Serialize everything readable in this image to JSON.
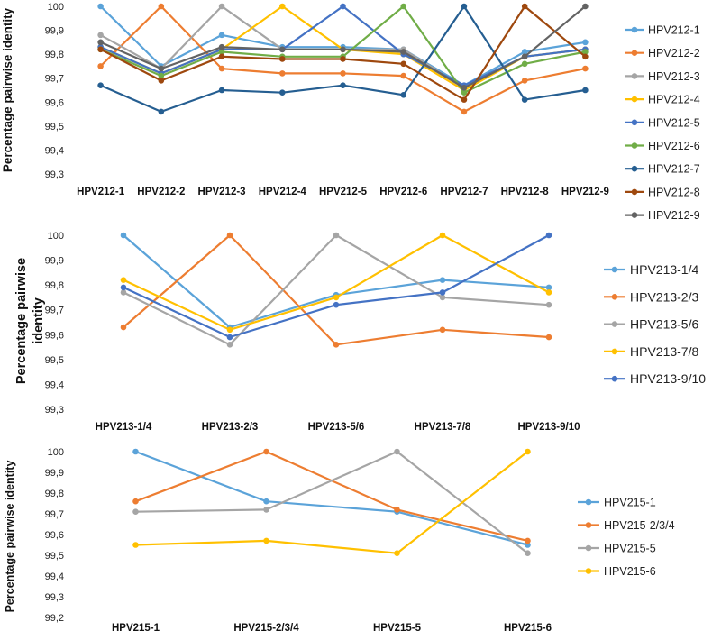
{
  "chart_data": [
    {
      "type": "line",
      "ylabel": "Percentage pairwise identity",
      "categories": [
        "HPV212-1",
        "HPV212-2",
        "HPV212-3",
        "HPV212-4",
        "HPV212-5",
        "HPV212-6",
        "HPV212-7",
        "HPV212-8",
        "HPV212-9"
      ],
      "ylim": [
        99.3,
        100
      ],
      "ytick_labels": [
        "99,3",
        "99,4",
        "99,5",
        "99,6",
        "99,7",
        "99,8",
        "99,9",
        "100"
      ],
      "legend_position": "right",
      "series": [
        {
          "name": "HPV212-1",
          "color": "#5BA3D9",
          "values": [
            100,
            99.75,
            99.88,
            99.83,
            99.83,
            99.82,
            99.67,
            99.81,
            99.85
          ]
        },
        {
          "name": "HPV212-2",
          "color": "#ED7D31",
          "values": [
            99.75,
            100,
            99.74,
            99.72,
            99.72,
            99.71,
            99.56,
            99.69,
            99.74
          ]
        },
        {
          "name": "HPV212-3",
          "color": "#A5A5A5",
          "values": [
            99.88,
            99.74,
            100,
            99.82,
            99.82,
            99.82,
            99.66,
            99.79,
            99.82
          ]
        },
        {
          "name": "HPV212-4",
          "color": "#FFC000",
          "values": [
            99.83,
            99.72,
            99.82,
            100,
            99.82,
            99.8,
            99.65,
            99.79,
            99.82
          ]
        },
        {
          "name": "HPV212-5",
          "color": "#4472C4",
          "values": [
            99.83,
            99.72,
            99.82,
            99.82,
            100,
            99.8,
            99.67,
            99.79,
            99.82
          ]
        },
        {
          "name": "HPV212-6",
          "color": "#70AD47",
          "values": [
            99.82,
            99.71,
            99.81,
            99.79,
            99.79,
            100,
            99.64,
            99.76,
            99.81
          ]
        },
        {
          "name": "HPV212-7",
          "color": "#255E91",
          "values": [
            99.67,
            99.56,
            99.65,
            99.64,
            99.67,
            99.63,
            100,
            99.61,
            99.65
          ]
        },
        {
          "name": "HPV212-8",
          "color": "#9E480E",
          "values": [
            99.82,
            99.69,
            99.79,
            99.78,
            99.78,
            99.76,
            99.61,
            100,
            99.79
          ]
        },
        {
          "name": "HPV212-9",
          "color": "#636363",
          "values": [
            99.85,
            99.74,
            99.83,
            99.82,
            99.82,
            99.81,
            99.66,
            99.79,
            100
          ]
        }
      ]
    },
    {
      "type": "line",
      "ylabel": "Percentage pairwise identity",
      "categories": [
        "HPV213-1/4",
        "HPV213-2/3",
        "HPV213-5/6",
        "HPV213-7/8",
        "HPV213-9/10"
      ],
      "ylim": [
        99.3,
        100
      ],
      "ytick_labels": [
        "99,3",
        "99,4",
        "99,5",
        "99,6",
        "99,7",
        "99,8",
        "99,9",
        "100"
      ],
      "legend_position": "right",
      "series": [
        {
          "name": "HPV213-1/4",
          "color": "#5BA3D9",
          "values": [
            100,
            99.63,
            99.76,
            99.82,
            99.79
          ]
        },
        {
          "name": "HPV213-2/3",
          "color": "#ED7D31",
          "values": [
            99.63,
            100,
            99.56,
            99.62,
            99.59
          ]
        },
        {
          "name": "HPV213-5/6",
          "color": "#A5A5A5",
          "values": [
            99.77,
            99.56,
            100,
            99.75,
            99.72
          ]
        },
        {
          "name": "HPV213-7/8",
          "color": "#FFC000",
          "values": [
            99.82,
            99.62,
            99.75,
            100,
            99.77
          ]
        },
        {
          "name": "HPV213-9/10",
          "color": "#4472C4",
          "values": [
            99.79,
            99.59,
            99.72,
            99.77,
            100
          ]
        }
      ]
    },
    {
      "type": "line",
      "ylabel": "Percentage pairwise identity",
      "categories": [
        "HPV215-1",
        "HPV215-2/3/4",
        "HPV215-5",
        "HPV215-6"
      ],
      "ylim": [
        99.2,
        100
      ],
      "ytick_labels": [
        "99,2",
        "99,3",
        "99,4",
        "99,5",
        "99,6",
        "99,7",
        "99,8",
        "99,9",
        "100"
      ],
      "legend_position": "right",
      "series": [
        {
          "name": "HPV215-1",
          "color": "#5BA3D9",
          "values": [
            100,
            99.76,
            99.71,
            99.55
          ]
        },
        {
          "name": "HPV215-2/3/4",
          "color": "#ED7D31",
          "values": [
            99.76,
            100,
            99.72,
            99.57
          ]
        },
        {
          "name": "HPV215-5",
          "color": "#A5A5A5",
          "values": [
            99.71,
            99.72,
            100,
            99.51
          ]
        },
        {
          "name": "HPV215-6",
          "color": "#FFC000",
          "values": [
            99.55,
            99.57,
            99.51,
            100
          ]
        }
      ]
    }
  ]
}
